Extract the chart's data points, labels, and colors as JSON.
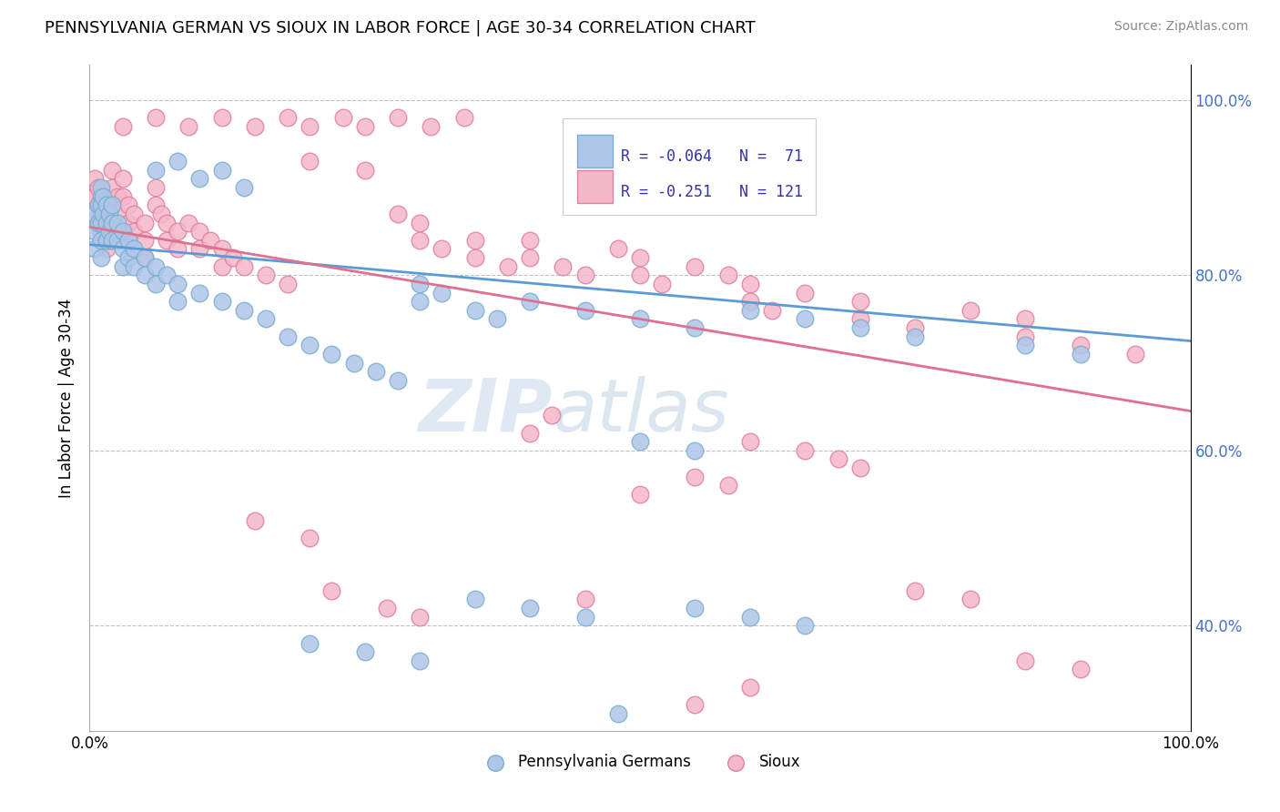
{
  "title": "PENNSYLVANIA GERMAN VS SIOUX IN LABOR FORCE | AGE 30-34 CORRELATION CHART",
  "source": "Source: ZipAtlas.com",
  "ylabel": "In Labor Force | Age 30-34",
  "xlim": [
    0.0,
    1.0
  ],
  "ylim": [
    0.28,
    1.04
  ],
  "blue_R": -0.064,
  "blue_N": 71,
  "pink_R": -0.251,
  "pink_N": 121,
  "blue_label": "Pennsylvania Germans",
  "pink_label": "Sioux",
  "blue_color": "#aec6e8",
  "pink_color": "#f5b8c8",
  "blue_edge": "#7aaed0",
  "pink_edge": "#e080a0",
  "watermark": "ZIPatlas",
  "blue_line_start": 0.835,
  "blue_line_end": 0.725,
  "pink_line_start": 0.855,
  "pink_line_end": 0.645,
  "blue_points": [
    [
      0.005,
      0.87
    ],
    [
      0.005,
      0.85
    ],
    [
      0.005,
      0.83
    ],
    [
      0.008,
      0.88
    ],
    [
      0.008,
      0.86
    ],
    [
      0.01,
      0.9
    ],
    [
      0.01,
      0.88
    ],
    [
      0.01,
      0.86
    ],
    [
      0.01,
      0.84
    ],
    [
      0.01,
      0.82
    ],
    [
      0.012,
      0.89
    ],
    [
      0.012,
      0.87
    ],
    [
      0.015,
      0.88
    ],
    [
      0.015,
      0.86
    ],
    [
      0.015,
      0.84
    ],
    [
      0.018,
      0.87
    ],
    [
      0.018,
      0.85
    ],
    [
      0.02,
      0.88
    ],
    [
      0.02,
      0.86
    ],
    [
      0.02,
      0.84
    ],
    [
      0.025,
      0.86
    ],
    [
      0.025,
      0.84
    ],
    [
      0.03,
      0.85
    ],
    [
      0.03,
      0.83
    ],
    [
      0.03,
      0.81
    ],
    [
      0.035,
      0.84
    ],
    [
      0.035,
      0.82
    ],
    [
      0.04,
      0.83
    ],
    [
      0.04,
      0.81
    ],
    [
      0.05,
      0.82
    ],
    [
      0.05,
      0.8
    ],
    [
      0.06,
      0.81
    ],
    [
      0.06,
      0.79
    ],
    [
      0.07,
      0.8
    ],
    [
      0.08,
      0.79
    ],
    [
      0.08,
      0.77
    ],
    [
      0.1,
      0.78
    ],
    [
      0.12,
      0.77
    ],
    [
      0.14,
      0.76
    ],
    [
      0.16,
      0.75
    ],
    [
      0.06,
      0.92
    ],
    [
      0.08,
      0.93
    ],
    [
      0.1,
      0.91
    ],
    [
      0.12,
      0.92
    ],
    [
      0.14,
      0.9
    ],
    [
      0.18,
      0.73
    ],
    [
      0.2,
      0.72
    ],
    [
      0.22,
      0.71
    ],
    [
      0.24,
      0.7
    ],
    [
      0.26,
      0.69
    ],
    [
      0.28,
      0.68
    ],
    [
      0.3,
      0.79
    ],
    [
      0.3,
      0.77
    ],
    [
      0.32,
      0.78
    ],
    [
      0.35,
      0.76
    ],
    [
      0.37,
      0.75
    ],
    [
      0.4,
      0.77
    ],
    [
      0.45,
      0.76
    ],
    [
      0.5,
      0.75
    ],
    [
      0.55,
      0.74
    ],
    [
      0.6,
      0.76
    ],
    [
      0.65,
      0.75
    ],
    [
      0.7,
      0.74
    ],
    [
      0.75,
      0.73
    ],
    [
      0.85,
      0.72
    ],
    [
      0.9,
      0.71
    ],
    [
      0.5,
      0.61
    ],
    [
      0.55,
      0.6
    ],
    [
      0.55,
      0.42
    ],
    [
      0.6,
      0.41
    ],
    [
      0.65,
      0.4
    ],
    [
      0.2,
      0.38
    ],
    [
      0.25,
      0.37
    ],
    [
      0.3,
      0.36
    ],
    [
      0.35,
      0.43
    ],
    [
      0.4,
      0.42
    ],
    [
      0.45,
      0.41
    ],
    [
      0.48,
      0.3
    ]
  ],
  "pink_points": [
    [
      0.005,
      0.91
    ],
    [
      0.005,
      0.89
    ],
    [
      0.005,
      0.87
    ],
    [
      0.008,
      0.9
    ],
    [
      0.008,
      0.88
    ],
    [
      0.01,
      0.89
    ],
    [
      0.01,
      0.87
    ],
    [
      0.01,
      0.85
    ],
    [
      0.012,
      0.88
    ],
    [
      0.012,
      0.86
    ],
    [
      0.015,
      0.87
    ],
    [
      0.015,
      0.85
    ],
    [
      0.015,
      0.83
    ],
    [
      0.018,
      0.86
    ],
    [
      0.018,
      0.84
    ],
    [
      0.02,
      0.92
    ],
    [
      0.02,
      0.9
    ],
    [
      0.02,
      0.88
    ],
    [
      0.025,
      0.89
    ],
    [
      0.025,
      0.87
    ],
    [
      0.03,
      0.91
    ],
    [
      0.03,
      0.89
    ],
    [
      0.035,
      0.88
    ],
    [
      0.035,
      0.86
    ],
    [
      0.035,
      0.84
    ],
    [
      0.04,
      0.87
    ],
    [
      0.04,
      0.85
    ],
    [
      0.05,
      0.86
    ],
    [
      0.05,
      0.84
    ],
    [
      0.05,
      0.82
    ],
    [
      0.06,
      0.9
    ],
    [
      0.06,
      0.88
    ],
    [
      0.065,
      0.87
    ],
    [
      0.07,
      0.86
    ],
    [
      0.07,
      0.84
    ],
    [
      0.08,
      0.85
    ],
    [
      0.08,
      0.83
    ],
    [
      0.09,
      0.86
    ],
    [
      0.1,
      0.85
    ],
    [
      0.1,
      0.83
    ],
    [
      0.11,
      0.84
    ],
    [
      0.12,
      0.83
    ],
    [
      0.12,
      0.81
    ],
    [
      0.13,
      0.82
    ],
    [
      0.14,
      0.81
    ],
    [
      0.16,
      0.8
    ],
    [
      0.18,
      0.79
    ],
    [
      0.03,
      0.97
    ],
    [
      0.06,
      0.98
    ],
    [
      0.09,
      0.97
    ],
    [
      0.12,
      0.98
    ],
    [
      0.15,
      0.97
    ],
    [
      0.18,
      0.98
    ],
    [
      0.2,
      0.97
    ],
    [
      0.23,
      0.98
    ],
    [
      0.25,
      0.97
    ],
    [
      0.28,
      0.98
    ],
    [
      0.31,
      0.97
    ],
    [
      0.34,
      0.98
    ],
    [
      0.2,
      0.93
    ],
    [
      0.25,
      0.92
    ],
    [
      0.28,
      0.87
    ],
    [
      0.3,
      0.86
    ],
    [
      0.3,
      0.84
    ],
    [
      0.32,
      0.83
    ],
    [
      0.35,
      0.84
    ],
    [
      0.35,
      0.82
    ],
    [
      0.38,
      0.81
    ],
    [
      0.4,
      0.84
    ],
    [
      0.4,
      0.82
    ],
    [
      0.43,
      0.81
    ],
    [
      0.45,
      0.8
    ],
    [
      0.48,
      0.83
    ],
    [
      0.5,
      0.82
    ],
    [
      0.5,
      0.8
    ],
    [
      0.52,
      0.79
    ],
    [
      0.55,
      0.81
    ],
    [
      0.58,
      0.8
    ],
    [
      0.6,
      0.79
    ],
    [
      0.6,
      0.77
    ],
    [
      0.62,
      0.76
    ],
    [
      0.65,
      0.78
    ],
    [
      0.7,
      0.77
    ],
    [
      0.7,
      0.75
    ],
    [
      0.75,
      0.74
    ],
    [
      0.8,
      0.76
    ],
    [
      0.85,
      0.75
    ],
    [
      0.85,
      0.73
    ],
    [
      0.9,
      0.72
    ],
    [
      0.95,
      0.71
    ],
    [
      0.4,
      0.62
    ],
    [
      0.42,
      0.64
    ],
    [
      0.5,
      0.55
    ],
    [
      0.55,
      0.57
    ],
    [
      0.58,
      0.56
    ],
    [
      0.6,
      0.61
    ],
    [
      0.65,
      0.6
    ],
    [
      0.68,
      0.59
    ],
    [
      0.7,
      0.58
    ],
    [
      0.15,
      0.52
    ],
    [
      0.2,
      0.5
    ],
    [
      0.22,
      0.44
    ],
    [
      0.27,
      0.42
    ],
    [
      0.3,
      0.41
    ],
    [
      0.45,
      0.43
    ],
    [
      0.75,
      0.44
    ],
    [
      0.8,
      0.43
    ],
    [
      0.85,
      0.36
    ],
    [
      0.9,
      0.35
    ],
    [
      0.6,
      0.33
    ],
    [
      0.55,
      0.31
    ]
  ]
}
